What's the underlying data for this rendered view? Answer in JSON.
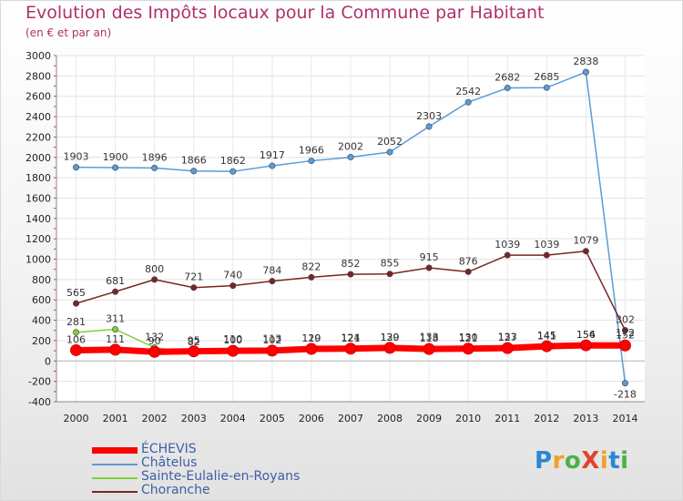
{
  "title": "Evolution des Impôts locaux pour la Commune par Habitant",
  "subtitle": "(en € et par an)",
  "brand": {
    "text": "ProXiti",
    "colors": [
      "#2b86d6",
      "#f0a12b",
      "#4db04a",
      "#e0452c",
      "#f0a12b",
      "#2b86d6",
      "#4db04a"
    ]
  },
  "chart_data": {
    "type": "line",
    "title": "Evolution des Impôts locaux pour la Commune par Habitant",
    "subtitle": "(en € et par an)",
    "xlabel": "",
    "ylabel": "",
    "x": [
      2000,
      2001,
      2002,
      2003,
      2004,
      2005,
      2006,
      2007,
      2008,
      2009,
      2010,
      2011,
      2012,
      2013,
      2014
    ],
    "ylim": [
      -400,
      3000
    ],
    "yticks": [
      -400,
      -200,
      0,
      200,
      400,
      600,
      800,
      1000,
      1200,
      1400,
      1600,
      1800,
      2000,
      2200,
      2400,
      2600,
      2800,
      3000
    ],
    "grid": true,
    "legend_position": "bottom-left",
    "series": [
      {
        "name": "ÉCHEVIS",
        "color": "#ff0000",
        "thick": true,
        "values": [
          106,
          111,
          90,
          95,
          100,
          102,
          119,
          121,
          129,
          118,
          121,
          127,
          145,
          154,
          152
        ],
        "labels": [
          "106",
          "111",
          "90",
          "95",
          "100",
          "102",
          "119",
          "121",
          "129",
          "118",
          "121",
          "127",
          "145",
          "154",
          "152"
        ]
      },
      {
        "name": "Châtelus",
        "color": "#5b9bd5",
        "thick": false,
        "values": [
          1903,
          1900,
          1896,
          1866,
          1862,
          1917,
          1966,
          2002,
          2052,
          2303,
          2542,
          2682,
          2685,
          2838,
          -218
        ],
        "labels": [
          "1903",
          "1900",
          "1896",
          "1866",
          "1862",
          "1917",
          "1966",
          "2002",
          "2052",
          "2303",
          "2542",
          "2682",
          "2685",
          "2838",
          "-218"
        ]
      },
      {
        "name": "Sainte-Eulalie-en-Royans",
        "color": "#7dd13b",
        "thick": false,
        "values": [
          281,
          311,
          132,
          82,
          110,
          113,
          120,
          124,
          130,
          133,
          130,
          133,
          141,
          156,
          172
        ],
        "labels": [
          "281",
          "311",
          "132",
          "82",
          "110",
          "113",
          "120",
          "124",
          "130",
          "133",
          "130",
          "133",
          "141",
          "156",
          "172"
        ]
      },
      {
        "name": "Choranche",
        "color": "#7a2525",
        "thick": false,
        "values": [
          565,
          681,
          800,
          721,
          740,
          784,
          822,
          852,
          855,
          915,
          876,
          1039,
          1039,
          1079,
          302
        ],
        "labels": [
          "565",
          "681",
          "800",
          "721",
          "740",
          "784",
          "822",
          "852",
          "855",
          "915",
          "876",
          "1039",
          "1039",
          "1079",
          "302"
        ]
      }
    ]
  }
}
